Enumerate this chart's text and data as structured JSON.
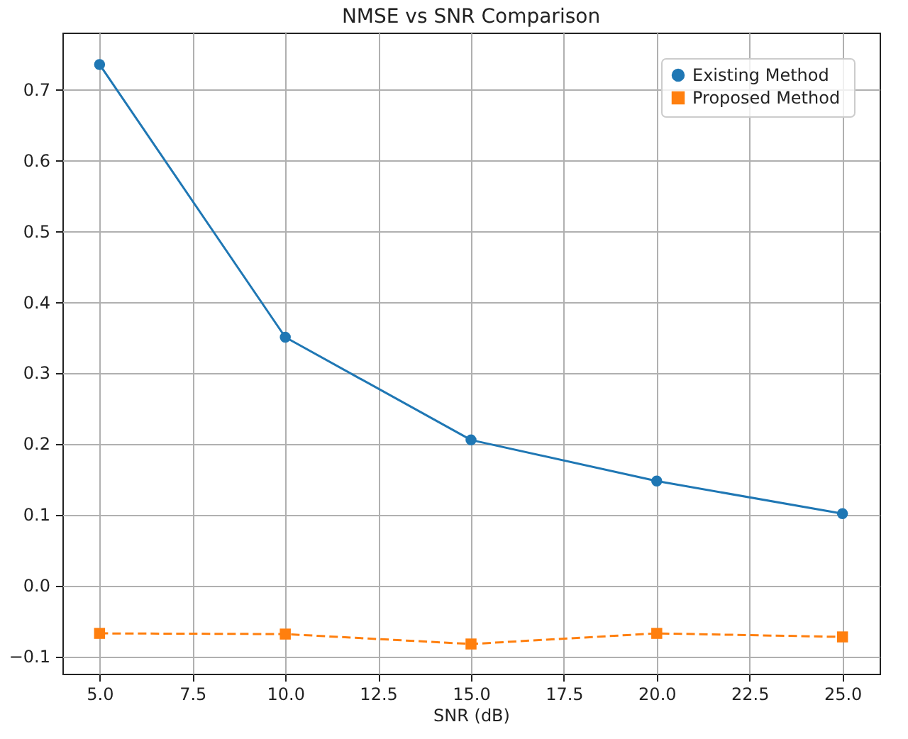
{
  "chart_data": {
    "type": "line",
    "title": "NMSE vs SNR Comparison",
    "xlabel": "SNR (dB)",
    "x": [
      5,
      10,
      15,
      20,
      25
    ],
    "series": [
      {
        "name": "Existing Method",
        "color": "#1f77b4",
        "marker": "circle",
        "line_style": "solid",
        "values": [
          0.735,
          0.35,
          0.205,
          0.147,
          0.101
        ]
      },
      {
        "name": "Proposed  Method",
        "color": "#ff7f0e",
        "marker": "square",
        "line_style": "dashed",
        "values": [
          -0.068,
          -0.069,
          -0.083,
          -0.068,
          -0.073
        ]
      }
    ],
    "xlim": [
      4,
      26
    ],
    "ylim": [
      -0.125,
      0.78
    ],
    "xticks": [
      {
        "value": 5,
        "label": "5.0"
      },
      7.5,
      {
        "value": 10,
        "label": "10.0"
      },
      12.5,
      {
        "value": 15,
        "label": "15.0"
      },
      17.5,
      {
        "value": 20,
        "label": "20.0"
      },
      22.5,
      {
        "value": 25,
        "label": "25.0"
      }
    ],
    "yticks": [
      {
        "value": -0.1,
        "label": "−0.1"
      },
      {
        "value": 0,
        "label": "0.0"
      },
      0.1,
      0.2,
      0.3,
      0.4,
      0.5,
      0.6,
      0.7
    ],
    "grid": true,
    "legend": "top right"
  }
}
